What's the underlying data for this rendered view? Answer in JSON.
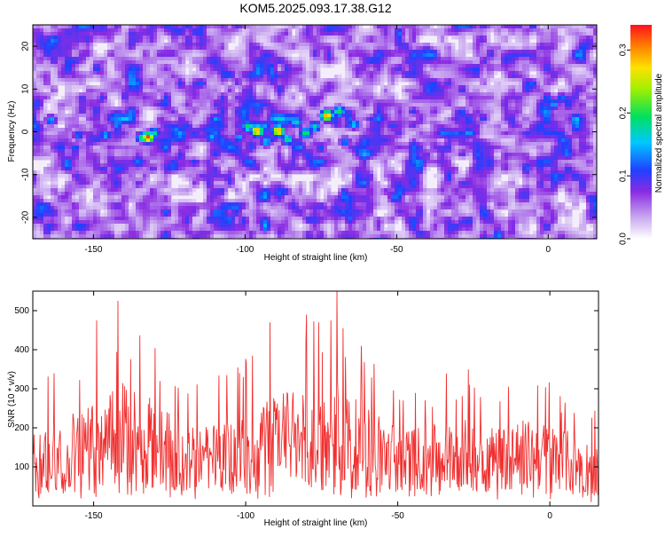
{
  "title": "KOM5.2025.093.17.38.G12",
  "chart_data": [
    {
      "type": "heatmap",
      "xlabel": "Height of straight line (km)",
      "ylabel": "Frequency (Hz)",
      "xlim": [
        -170,
        16
      ],
      "ylim": [
        -25,
        25
      ],
      "xticks": [
        -150,
        -100,
        -50,
        0
      ],
      "yticks": [
        -20,
        -10,
        0,
        10,
        20
      ],
      "colorbar": {
        "label": "Normalized spectral amplitude",
        "range": [
          0,
          0.34
        ],
        "ticks": [
          0.0,
          0.1,
          0.2,
          0.3
        ],
        "tick_labels": [
          "0.0",
          "0.1",
          "0.2",
          "0.3"
        ],
        "colormap": "rainbow (white-violet-blue-cyan-green-yellow-orange-red)"
      },
      "hotspots": [
        {
          "x": -132,
          "y": -1,
          "value": 0.33
        },
        {
          "x": -134,
          "y": -1,
          "value": 0.2
        },
        {
          "x": -130,
          "y": 0,
          "value": 0.18
        },
        {
          "x": -96,
          "y": 0.5,
          "value": 0.3
        },
        {
          "x": -99,
          "y": 1.5,
          "value": 0.2
        },
        {
          "x": -89,
          "y": 0.5,
          "value": 0.3
        },
        {
          "x": -86,
          "y": -1.5,
          "value": 0.2
        },
        {
          "x": -83,
          "y": 2.5,
          "value": 0.18
        },
        {
          "x": -80,
          "y": 0,
          "value": 0.2
        },
        {
          "x": -77,
          "y": 1.5,
          "value": 0.18
        },
        {
          "x": -73,
          "y": 4,
          "value": 0.3
        },
        {
          "x": -69,
          "y": 5,
          "value": 0.2
        },
        {
          "x": -64,
          "y": 2,
          "value": 0.16
        },
        {
          "x": -93,
          "y": -2,
          "value": 0.16
        },
        {
          "x": -102,
          "y": -1,
          "value": 0.15
        },
        {
          "x": -111,
          "y": -1,
          "value": 0.15
        },
        {
          "x": -146,
          "y": -0.5,
          "value": 0.15
        },
        {
          "x": -164,
          "y": 3,
          "value": 0.15
        },
        {
          "x": -123,
          "y": 0.5,
          "value": 0.14
        },
        {
          "x": -155,
          "y": -0.5,
          "value": 0.13
        },
        {
          "x": -67,
          "y": -2,
          "value": 0.14
        }
      ]
    },
    {
      "type": "line",
      "xlabel": "Height of straight line (km)",
      "ylabel": "SNR (10 * v/v)",
      "xlim": [
        -170,
        16
      ],
      "ylim": [
        0,
        550
      ],
      "xticks": [
        -150,
        -100,
        -50,
        0
      ],
      "yticks": [
        100,
        200,
        300,
        400,
        500
      ],
      "series_color": "#f03030",
      "x_step": 0.2,
      "envelope_x": [
        -170,
        -160,
        -150,
        -145,
        -140,
        -130,
        -120,
        -110,
        -100,
        -90,
        -85,
        -80,
        -75,
        -72,
        -70,
        -65,
        -60,
        -50,
        -40,
        -30,
        -20,
        -10,
        0,
        10,
        16
      ],
      "envelope_upper": [
        330,
        360,
        420,
        470,
        520,
        430,
        320,
        330,
        380,
        470,
        460,
        490,
        470,
        480,
        550,
        450,
        410,
        330,
        320,
        360,
        330,
        350,
        340,
        290,
        240
      ],
      "envelope_lower": [
        10,
        20,
        15,
        30,
        25,
        20,
        15,
        20,
        10,
        25,
        20,
        30,
        15,
        20,
        10,
        15,
        20,
        15,
        20,
        20,
        15,
        20,
        15,
        10,
        10
      ],
      "peaks": [
        {
          "x": -142,
          "y": 525
        },
        {
          "x": -149,
          "y": 475
        },
        {
          "x": -92,
          "y": 470
        },
        {
          "x": -80,
          "y": 490
        },
        {
          "x": -76,
          "y": 470
        },
        {
          "x": -72,
          "y": 475
        },
        {
          "x": -70,
          "y": 550
        },
        {
          "x": -68,
          "y": 455
        },
        {
          "x": -62,
          "y": 410
        }
      ]
    }
  ]
}
